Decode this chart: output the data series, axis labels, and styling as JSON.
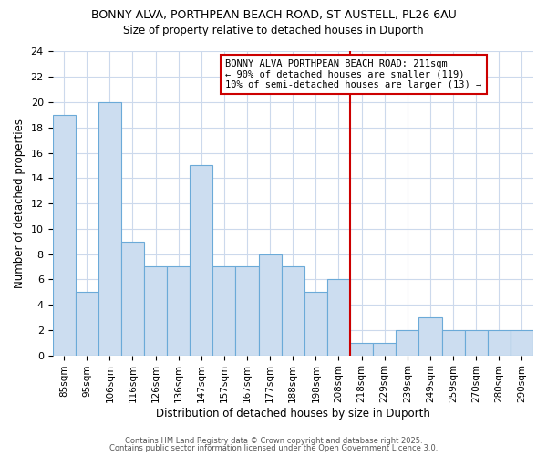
{
  "title": "BONNY ALVA, PORTHPEAN BEACH ROAD, ST AUSTELL, PL26 6AU",
  "subtitle": "Size of property relative to detached houses in Duporth",
  "xlabel": "Distribution of detached houses by size in Duporth",
  "ylabel": "Number of detached properties",
  "bar_labels": [
    "85sqm",
    "95sqm",
    "106sqm",
    "116sqm",
    "126sqm",
    "136sqm",
    "147sqm",
    "157sqm",
    "167sqm",
    "177sqm",
    "188sqm",
    "198sqm",
    "208sqm",
    "218sqm",
    "229sqm",
    "239sqm",
    "249sqm",
    "259sqm",
    "270sqm",
    "280sqm",
    "290sqm"
  ],
  "bar_values": [
    19,
    5,
    20,
    9,
    7,
    7,
    15,
    7,
    7,
    8,
    7,
    5,
    6,
    1,
    1,
    2,
    3,
    2,
    2,
    2,
    2
  ],
  "bar_color": "#ccddf0",
  "bar_edge_color": "#6baad8",
  "ylim": [
    0,
    24
  ],
  "yticks": [
    0,
    2,
    4,
    6,
    8,
    10,
    12,
    14,
    16,
    18,
    20,
    22,
    24
  ],
  "vline_x": 12.5,
  "vline_color": "#cc0000",
  "annotation_text": "BONNY ALVA PORTHPEAN BEACH ROAD: 211sqm\n← 90% of detached houses are smaller (119)\n10% of semi-detached houses are larger (13) →",
  "bg_color": "#ffffff",
  "grid_color": "#ccd9ec",
  "footer1": "Contains HM Land Registry data © Crown copyright and database right 2025.",
  "footer2": "Contains public sector information licensed under the Open Government Licence 3.0."
}
